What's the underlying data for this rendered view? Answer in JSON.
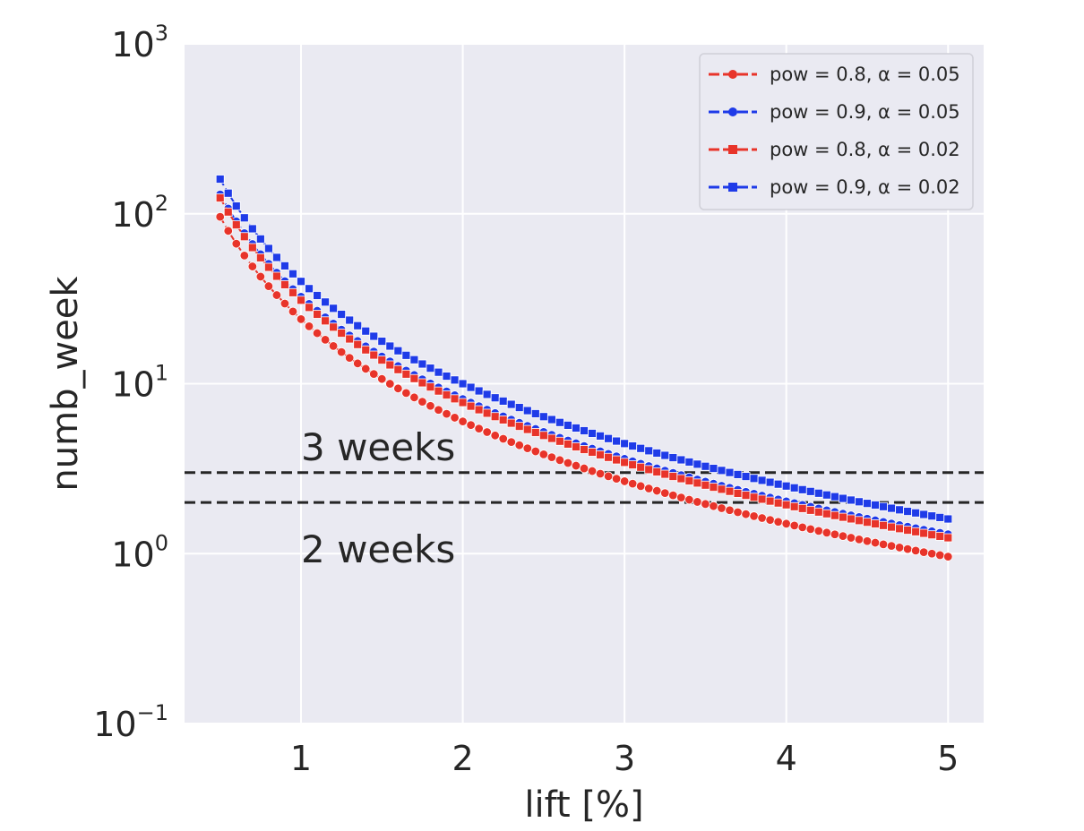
{
  "chart_data": {
    "type": "line",
    "xlabel": "lift [%]",
    "ylabel": "numb_week",
    "xlim": [
      0.28,
      5.22
    ],
    "ylim": [
      0.1,
      1000
    ],
    "yscale": "log",
    "xticks": [
      1,
      2,
      3,
      4,
      5
    ],
    "xtick_labels": [
      "1",
      "2",
      "3",
      "4",
      "5"
    ],
    "yticks": [
      {
        "value": 0.1,
        "base": "10",
        "exp": "−1"
      },
      {
        "value": 1,
        "base": "10",
        "exp": "0"
      },
      {
        "value": 10,
        "base": "10",
        "exp": "1"
      },
      {
        "value": 100,
        "base": "10",
        "exp": "2"
      },
      {
        "value": 1000,
        "base": "10",
        "exp": "3"
      }
    ],
    "grid": true,
    "legend_position": "top-right",
    "x": [
      0.5,
      0.55,
      0.6,
      0.65,
      0.7,
      0.75,
      0.8,
      0.85,
      0.9,
      0.95,
      1.0,
      1.05,
      1.1,
      1.15,
      1.2,
      1.25,
      1.3,
      1.35,
      1.4,
      1.45,
      1.5,
      1.55,
      1.6,
      1.65,
      1.7,
      1.75,
      1.8,
      1.85,
      1.9,
      1.95,
      2.0,
      2.05,
      2.1,
      2.15,
      2.2,
      2.25,
      2.3,
      2.35,
      2.4,
      2.45,
      2.5,
      2.55,
      2.6,
      2.65,
      2.7,
      2.75,
      2.8,
      2.85,
      2.9,
      2.95,
      3.0,
      3.05,
      3.1,
      3.15,
      3.2,
      3.25,
      3.3,
      3.35,
      3.4,
      3.45,
      3.5,
      3.55,
      3.6,
      3.65,
      3.7,
      3.75,
      3.8,
      3.85,
      3.9,
      3.95,
      4.0,
      4.05,
      4.1,
      4.15,
      4.2,
      4.25,
      4.3,
      4.35,
      4.4,
      4.45,
      4.5,
      4.55,
      4.6,
      4.65,
      4.7,
      4.75,
      4.8,
      4.85,
      4.9,
      4.95,
      5.0
    ],
    "series": [
      {
        "name": "pow = 0.8, α = 0.05",
        "color": "#e8342a",
        "marker": "circle",
        "y_at_lift_1": 24.0
      },
      {
        "name": "pow = 0.9, α = 0.05",
        "color": "#1f3be8",
        "marker": "circle",
        "y_at_lift_1": 32.5
      },
      {
        "name": "pow = 0.8, α = 0.02",
        "color": "#e8342a",
        "marker": "square",
        "y_at_lift_1": 31.0
      },
      {
        "name": "pow = 0.9, α = 0.02",
        "color": "#1f3be8",
        "marker": "square",
        "y_at_lift_1": 40.0
      }
    ],
    "series_formula": "y = y_at_lift_1 / x^2",
    "hlines": [
      {
        "y": 3,
        "label": "3 weeks",
        "style": "dashed",
        "color": "#262626"
      },
      {
        "y": 2,
        "label": "2 weeks",
        "style": "dashed",
        "color": "#262626"
      }
    ],
    "annotations": [
      {
        "text": "3 weeks",
        "x": 1.0,
        "y": 4.2
      },
      {
        "text": "2 weeks",
        "x": 1.0,
        "y": 1.05
      }
    ]
  },
  "colors": {
    "plot_background": "#eaeaf2",
    "grid": "#ffffff",
    "text": "#262626"
  }
}
